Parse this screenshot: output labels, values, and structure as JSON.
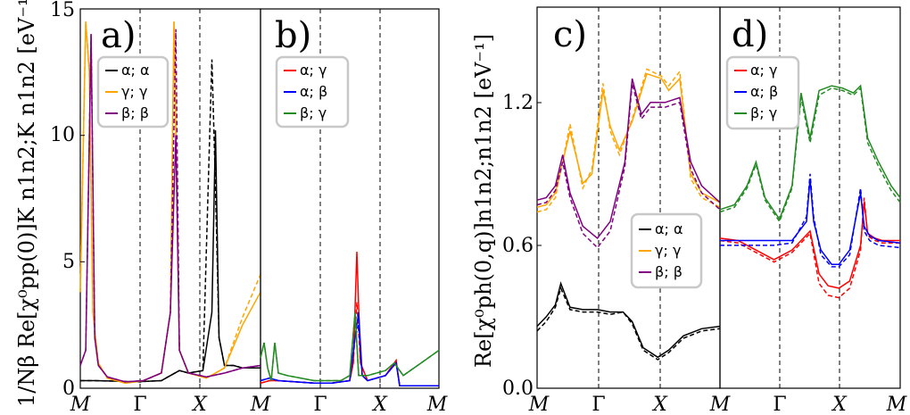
{
  "chart_data": [
    {
      "panel": "a)",
      "type": "line",
      "ylabel": "1/Nβ Re[χ⁰pp(0)]K n1n2;K n1n2 [eV⁻¹]",
      "ylim": [
        0,
        15
      ],
      "yticks": [
        "0",
        "5",
        "10",
        "15"
      ],
      "x_ticks": [
        "M",
        "Γ",
        "X",
        "M"
      ],
      "legend_position": "upper-left",
      "series": [
        {
          "name": "α; α",
          "color": "#000000",
          "x": [
            0,
            0.08,
            0.2,
            0.3,
            0.45,
            0.5,
            0.55,
            0.6,
            0.68,
            0.73,
            0.75,
            0.77,
            0.8,
            0.85,
            0.9,
            0.95,
            1
          ],
          "y": [
            0.3,
            0.3,
            0.28,
            0.25,
            0.3,
            0.5,
            0.7,
            0.6,
            0.7,
            3.0,
            10.2,
            2.0,
            0.9,
            0.9,
            0.8,
            0.8,
            0.8
          ],
          "dashed_y": [
            0.3,
            0.3,
            0.28,
            0.25,
            0.3,
            0.5,
            0.7,
            0.6,
            0.7,
            13.0,
            8.0,
            2.0,
            0.9,
            0.9,
            0.8,
            0.8,
            0.8
          ]
        },
        {
          "name": "γ; γ",
          "color": "#ffa500",
          "x": [
            0,
            0.03,
            0.05,
            0.07,
            0.1,
            0.15,
            0.25,
            0.35,
            0.45,
            0.5,
            0.52,
            0.55,
            0.6,
            0.7,
            0.8,
            0.9,
            1
          ],
          "y": [
            3.8,
            14.5,
            12.5,
            3.0,
            1.0,
            0.4,
            0.2,
            0.3,
            0.6,
            3.0,
            14.5,
            1.5,
            0.6,
            0.4,
            0.8,
            2.5,
            3.8
          ],
          "dashed_y": [
            3.8,
            14.5,
            12.5,
            3.0,
            1.0,
            0.4,
            0.2,
            0.3,
            0.6,
            3.0,
            14.5,
            1.5,
            0.6,
            0.4,
            0.8,
            2.8,
            4.5
          ]
        },
        {
          "name": "β; β",
          "color": "#800080",
          "x": [
            0,
            0.03,
            0.06,
            0.08,
            0.1,
            0.15,
            0.25,
            0.35,
            0.45,
            0.5,
            0.53,
            0.55,
            0.6,
            0.7,
            0.8,
            0.9,
            1
          ],
          "y": [
            0.9,
            1.5,
            14.0,
            2.0,
            0.9,
            0.45,
            0.25,
            0.3,
            0.6,
            3.0,
            10.0,
            1.5,
            0.6,
            0.45,
            0.6,
            0.8,
            0.9
          ],
          "dashed_y": [
            0.9,
            1.5,
            14.0,
            2.0,
            0.9,
            0.45,
            0.25,
            0.3,
            0.6,
            3.0,
            14.2,
            1.5,
            0.6,
            0.45,
            0.6,
            0.8,
            0.9
          ]
        }
      ]
    },
    {
      "panel": "b)",
      "type": "line",
      "ylim": [
        0,
        15
      ],
      "x_ticks": [
        "M",
        "Γ",
        "X",
        "M"
      ],
      "legend_position": "upper-left",
      "series": [
        {
          "name": "α; γ",
          "color": "#ff0000",
          "x": [
            0,
            0.05,
            0.1,
            0.2,
            0.3,
            0.4,
            0.5,
            0.52,
            0.54,
            0.56,
            0.6,
            0.7,
            0.76,
            0.78,
            0.85,
            1
          ],
          "y": [
            0.2,
            0.3,
            0.3,
            0.25,
            0.2,
            0.2,
            0.3,
            1.0,
            5.4,
            1.0,
            0.3,
            0.5,
            1.1,
            0.1,
            0.1,
            0.1
          ],
          "dashed_y": [
            0.2,
            0.3,
            0.3,
            0.25,
            0.2,
            0.2,
            0.3,
            1.0,
            3.4,
            1.0,
            0.3,
            0.5,
            1.1,
            0.1,
            0.1,
            0.1
          ]
        },
        {
          "name": "α; β",
          "color": "#0000ff",
          "x": [
            0,
            0.05,
            0.1,
            0.2,
            0.3,
            0.4,
            0.5,
            0.53,
            0.55,
            0.57,
            0.6,
            0.7,
            0.76,
            0.78,
            0.85,
            1
          ],
          "y": [
            0.3,
            0.4,
            0.3,
            0.25,
            0.2,
            0.2,
            0.3,
            2.0,
            3.0,
            0.5,
            0.3,
            0.5,
            1.0,
            0.1,
            0.1,
            0.1
          ],
          "dashed_y": [
            0.3,
            0.4,
            0.3,
            0.25,
            0.2,
            0.2,
            0.3,
            2.0,
            2.5,
            0.5,
            0.3,
            0.5,
            1.0,
            0.1,
            0.1,
            0.1
          ]
        },
        {
          "name": "β; γ",
          "color": "#228b22",
          "x": [
            0,
            0.02,
            0.04,
            0.06,
            0.08,
            0.1,
            0.15,
            0.3,
            0.45,
            0.5,
            0.53,
            0.55,
            0.6,
            0.7,
            0.75,
            0.8,
            0.9,
            1
          ],
          "y": [
            1.2,
            1.8,
            0.8,
            0.3,
            1.8,
            0.6,
            0.5,
            0.3,
            0.3,
            0.5,
            3.0,
            0.5,
            0.5,
            0.7,
            1.0,
            0.5,
            1.0,
            1.5
          ],
          "dashed_y": [
            1.2,
            1.8,
            0.8,
            0.3,
            1.8,
            0.6,
            0.5,
            0.3,
            0.3,
            0.5,
            3.0,
            0.5,
            0.5,
            0.7,
            1.0,
            0.5,
            1.0,
            1.5
          ]
        }
      ]
    },
    {
      "panel": "c)",
      "type": "line",
      "ylabel": "Re[χ⁰ph(0,q)]n1n2;n1n2 [eV⁻¹]",
      "ylim": [
        0.0,
        1.6
      ],
      "yticks": [
        "0.0",
        "0.6",
        "1.2"
      ],
      "x_ticks": [
        "M",
        "Γ",
        "X",
        "M"
      ],
      "legend_position": "center-right",
      "series": [
        {
          "name": "α; α",
          "color": "#000000",
          "x": [
            0,
            0.05,
            0.1,
            0.13,
            0.18,
            0.25,
            0.33,
            0.4,
            0.47,
            0.52,
            0.58,
            0.66,
            0.72,
            0.8,
            0.9,
            1
          ],
          "y": [
            0.26,
            0.3,
            0.35,
            0.44,
            0.34,
            0.33,
            0.33,
            0.32,
            0.32,
            0.28,
            0.17,
            0.13,
            0.16,
            0.22,
            0.25,
            0.26
          ],
          "dashed_y": [
            0.24,
            0.28,
            0.34,
            0.42,
            0.33,
            0.32,
            0.32,
            0.31,
            0.32,
            0.27,
            0.16,
            0.12,
            0.15,
            0.21,
            0.24,
            0.25
          ]
        },
        {
          "name": "γ; γ",
          "color": "#ffa500",
          "x": [
            0,
            0.05,
            0.1,
            0.14,
            0.18,
            0.25,
            0.3,
            0.36,
            0.4,
            0.45,
            0.52,
            0.6,
            0.68,
            0.72,
            0.78,
            0.84,
            0.9,
            1
          ],
          "y": [
            0.76,
            0.77,
            0.82,
            0.95,
            1.08,
            0.86,
            0.9,
            1.25,
            1.1,
            1.0,
            1.12,
            1.32,
            1.3,
            1.25,
            1.3,
            0.9,
            0.82,
            0.78
          ],
          "dashed_y": [
            0.74,
            0.75,
            0.8,
            0.95,
            1.11,
            0.84,
            0.92,
            1.28,
            1.08,
            0.98,
            1.13,
            1.34,
            1.31,
            1.27,
            1.33,
            0.88,
            0.8,
            0.76
          ]
        },
        {
          "name": "β; β",
          "color": "#800080",
          "x": [
            0,
            0.05,
            0.1,
            0.14,
            0.18,
            0.25,
            0.33,
            0.4,
            0.48,
            0.52,
            0.57,
            0.62,
            0.7,
            0.78,
            0.84,
            0.9,
            1
          ],
          "y": [
            0.79,
            0.8,
            0.85,
            0.98,
            0.82,
            0.68,
            0.63,
            0.7,
            0.95,
            1.3,
            1.15,
            1.2,
            1.2,
            1.22,
            0.95,
            0.85,
            0.78
          ],
          "dashed_y": [
            0.77,
            0.78,
            0.83,
            0.95,
            0.8,
            0.65,
            0.59,
            0.66,
            0.93,
            1.28,
            1.13,
            1.18,
            1.18,
            1.2,
            0.92,
            0.82,
            0.75
          ]
        }
      ]
    },
    {
      "panel": "d)",
      "type": "line",
      "ylim": [
        0.0,
        1.6
      ],
      "x_ticks": [
        "M",
        "Γ",
        "X",
        "M"
      ],
      "legend_position": "upper-left",
      "series": [
        {
          "name": "α; γ",
          "color": "#ff0000",
          "x": [
            0,
            0.1,
            0.2,
            0.3,
            0.4,
            0.5,
            0.55,
            0.6,
            0.66,
            0.72,
            0.78,
            0.8,
            0.82,
            0.86,
            0.9,
            1
          ],
          "y": [
            0.63,
            0.62,
            0.58,
            0.54,
            0.58,
            0.66,
            0.48,
            0.43,
            0.42,
            0.45,
            0.6,
            0.78,
            0.65,
            0.63,
            0.62,
            0.62
          ],
          "dashed_y": [
            0.62,
            0.61,
            0.57,
            0.53,
            0.57,
            0.65,
            0.44,
            0.39,
            0.38,
            0.42,
            0.58,
            0.8,
            0.64,
            0.62,
            0.61,
            0.61
          ]
        },
        {
          "name": "α; β",
          "color": "#0000ff",
          "x": [
            0,
            0.1,
            0.2,
            0.3,
            0.4,
            0.48,
            0.5,
            0.52,
            0.56,
            0.62,
            0.66,
            0.72,
            0.78,
            0.8,
            0.83,
            0.88,
            1
          ],
          "y": [
            0.62,
            0.62,
            0.62,
            0.62,
            0.62,
            0.7,
            0.88,
            0.7,
            0.58,
            0.52,
            0.52,
            0.58,
            0.82,
            0.68,
            0.64,
            0.62,
            0.61
          ],
          "dashed_y": [
            0.6,
            0.6,
            0.6,
            0.6,
            0.61,
            0.72,
            0.9,
            0.72,
            0.56,
            0.51,
            0.51,
            0.56,
            0.84,
            0.66,
            0.62,
            0.6,
            0.59
          ]
        },
        {
          "name": "β; γ",
          "color": "#228b22",
          "x": [
            0,
            0.08,
            0.15,
            0.2,
            0.25,
            0.33,
            0.4,
            0.45,
            0.5,
            0.55,
            0.62,
            0.68,
            0.74,
            0.78,
            0.82,
            0.88,
            0.95,
            1
          ],
          "y": [
            0.75,
            0.77,
            0.85,
            0.95,
            0.8,
            0.71,
            0.85,
            1.24,
            1.05,
            1.25,
            1.27,
            1.26,
            1.24,
            1.27,
            1.05,
            0.95,
            0.85,
            0.8
          ],
          "dashed_y": [
            0.74,
            0.76,
            0.84,
            0.94,
            0.79,
            0.7,
            0.84,
            1.22,
            1.03,
            1.23,
            1.26,
            1.25,
            1.23,
            1.26,
            1.03,
            0.93,
            0.83,
            0.78
          ]
        }
      ]
    }
  ]
}
